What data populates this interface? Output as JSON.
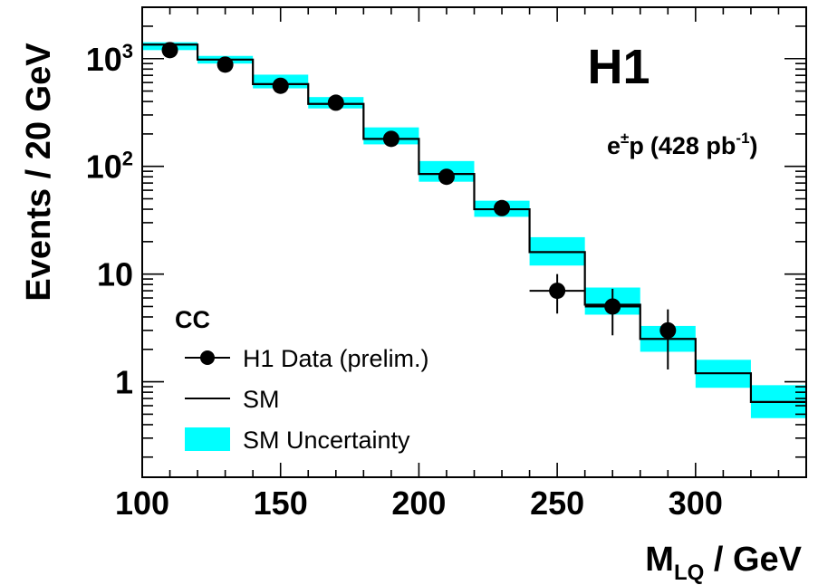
{
  "chart_data": {
    "type": "bar",
    "experiment": "H1",
    "dataset": {
      "prefix": "e",
      "charge": "±",
      "beam": "p",
      "lumi": "(428 pb",
      "lumi_exp": "-1",
      "lumi_close": ")"
    },
    "ylabel": "Events / 20 GeV",
    "xlabel": {
      "main": "M",
      "sub": "LQ",
      "unit": " / GeV"
    },
    "xlim": [
      100,
      340
    ],
    "ylim_log": [
      0.13,
      3000
    ],
    "y_scale": "log",
    "x_ticks": [
      "100",
      "150",
      "200",
      "250",
      "300"
    ],
    "x_tick_values": [
      100,
      150,
      200,
      250,
      300
    ],
    "y_ticks": [
      {
        "value": 1000,
        "base": "10",
        "exp": "3"
      },
      {
        "value": 100,
        "base": "10",
        "exp": "2"
      },
      {
        "value": 10,
        "base": "10",
        "exp": ""
      },
      {
        "value": 1,
        "base": "1",
        "exp": ""
      }
    ],
    "bin_edges": [
      100,
      120,
      140,
      160,
      180,
      200,
      220,
      240,
      260,
      280,
      300,
      320,
      340
    ],
    "series": [
      {
        "name": "SM",
        "kind": "histogram",
        "values": [
          1350,
          980,
          580,
          380,
          180,
          85,
          40,
          16,
          5.2,
          2.5,
          1.2,
          0.65
        ]
      },
      {
        "name": "SM Uncertainty",
        "kind": "band",
        "low": [
          1200,
          900,
          530,
          345,
          160,
          72,
          34,
          12,
          4.2,
          1.9,
          0.88,
          0.46
        ],
        "high": [
          1420,
          1060,
          710,
          440,
          230,
          112,
          48,
          22,
          7.5,
          3.3,
          1.6,
          0.93
        ]
      },
      {
        "name": "H1 Data (prelim.)",
        "kind": "points",
        "x": [
          110,
          130,
          150,
          170,
          190,
          210,
          230,
          250,
          270,
          290
        ],
        "y": [
          1200,
          880,
          560,
          390,
          180,
          80,
          41,
          7,
          5,
          3
        ],
        "err_low": [
          1150,
          840,
          540,
          375,
          170,
          72,
          36,
          4.3,
          2.7,
          1.3
        ],
        "err_high": [
          1260,
          920,
          590,
          410,
          195,
          90,
          47,
          10,
          7.3,
          4.7
        ],
        "xerr_bins": [
          false,
          false,
          false,
          false,
          false,
          false,
          false,
          true,
          true,
          false
        ]
      }
    ],
    "legend": {
      "header": "CC",
      "entries": [
        {
          "label": "H1 Data (prelim.)",
          "style": "marker"
        },
        {
          "label": "SM",
          "style": "line"
        },
        {
          "label": "SM Uncertainty",
          "style": "band"
        }
      ],
      "placement": "bottom-left"
    },
    "colors": {
      "band": "#00ffff",
      "line": "#000000",
      "marker": "#000000"
    }
  }
}
